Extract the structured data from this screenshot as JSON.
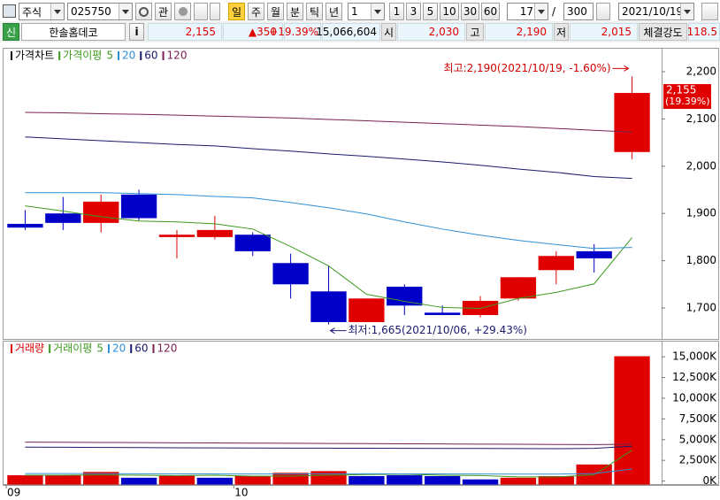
{
  "toolbar": {
    "market": "주식",
    "code": "025750",
    "interest": "관",
    "periods": [
      "일",
      "주",
      "월",
      "분",
      "틱",
      "년"
    ],
    "interval": "1",
    "quick": [
      "1",
      "3",
      "5",
      "10",
      "30",
      "60"
    ],
    "count": "17",
    "separator": "/",
    "count_total": "300",
    "date": "2021/10/19"
  },
  "quote_bar": {
    "flag": "신",
    "name": "한솔홈데코",
    "info": "i",
    "price": "2,155",
    "change": "▲350",
    "change_pct": "+19.39%",
    "volume": "15,066,604",
    "open_label": "시",
    "open": "2,030",
    "high_label": "고",
    "high": "2,190",
    "low_label": "저",
    "low": "2,015",
    "strength_label": "체결강도",
    "strength": "118.5"
  },
  "chart_data": [
    {
      "type": "candlestick",
      "series_name": "가격차트",
      "up_color": "#e00000",
      "down_color": "#0000c8",
      "open": [
        1878,
        1900,
        1880,
        1940,
        1850,
        1850,
        1855,
        1795,
        1735,
        1670,
        1745,
        1690,
        1685,
        1720,
        1780,
        1820,
        2030
      ],
      "high": [
        1907,
        1935,
        1940,
        1950,
        1865,
        1895,
        1860,
        1815,
        1790,
        1720,
        1750,
        1705,
        1725,
        1765,
        1820,
        1835,
        2190
      ],
      "low": [
        1865,
        1865,
        1860,
        1885,
        1805,
        1845,
        1810,
        1720,
        1665,
        1670,
        1685,
        1685,
        1680,
        1715,
        1750,
        1775,
        2015
      ],
      "close": [
        1870,
        1880,
        1925,
        1890,
        1855,
        1865,
        1820,
        1750,
        1670,
        1720,
        1705,
        1685,
        1715,
        1765,
        1810,
        1805,
        2155
      ],
      "ma_label": "가격이평",
      "ma_series": [
        {
          "name": "5",
          "color": "#3c9a1e",
          "values": [
            1916,
            1905,
            1893,
            1884,
            1882,
            1878,
            1867,
            1830,
            1789,
            1729,
            1714,
            1701,
            1699,
            1720,
            1733,
            1751,
            1849
          ]
        },
        {
          "name": "20",
          "color": "#2f8fd8",
          "values": [
            1944,
            1944,
            1944,
            1942,
            1940,
            1936,
            1933,
            1923,
            1912,
            1899,
            1882,
            1867,
            1854,
            1843,
            1834,
            1826,
            1828
          ]
        },
        {
          "name": "60",
          "color": "#1a1a6e",
          "values": [
            2062,
            2058,
            2054,
            2050,
            2046,
            2043,
            2037,
            2032,
            2026,
            2021,
            2015,
            2009,
            2002,
            1994,
            1987,
            1978,
            1974
          ]
        },
        {
          "name": "120",
          "color": "#7a2050",
          "values": [
            2114,
            2113,
            2111,
            2110,
            2108,
            2106,
            2104,
            2102,
            2099,
            2096,
            2093,
            2090,
            2087,
            2084,
            2080,
            2076,
            2072
          ]
        }
      ],
      "high_annotation": "최고:2,190(2021/10/19, -1.60%)",
      "low_annotation": "최저:1,665(2021/10/06, +29.43%)",
      "last_label": "2,155",
      "last_label_pct": "(19.39%)",
      "ylim": [
        1640,
        2245
      ],
      "yticks": [
        {
          "value": 2200,
          "label": "2,200"
        },
        {
          "value": 2100,
          "label": "2,100"
        },
        {
          "value": 2000,
          "label": "2,000"
        },
        {
          "value": 1900,
          "label": "1,900"
        },
        {
          "value": 1800,
          "label": "1,800"
        },
        {
          "value": 1700,
          "label": "1,700"
        }
      ]
    },
    {
      "type": "bar",
      "categories": [
        "09",
        null,
        null,
        null,
        null,
        null,
        "10",
        null,
        null,
        null,
        null,
        null,
        null,
        null,
        null,
        null,
        null
      ],
      "series": [
        {
          "name": "거래량",
          "color": "#e00000",
          "values": [
            700,
            700,
            1100,
            400,
            700,
            400,
            600,
            1000,
            1200,
            600,
            700,
            600,
            200,
            400,
            600,
            2000,
            15066.604
          ],
          "colors": [
            "#e00000",
            "#e00000",
            "#e00000",
            "#0000c8",
            "#e00000",
            "#0000c8",
            "#e00000",
            "#e00000",
            "#e00000",
            "#0000c8",
            "#0000c8",
            "#0000c8",
            "#0000c8",
            "#e00000",
            "#e00000",
            "#e00000",
            "#e00000"
          ]
        }
      ],
      "ma_label": "거래이평",
      "ma_series": [
        {
          "name": "5",
          "color": "#3c9a1e",
          "values": [
            700,
            700,
            750,
            700,
            650,
            700,
            600,
            600,
            700,
            780,
            820,
            700,
            660,
            500,
            500,
            760,
            3733
          ]
        },
        {
          "name": "20",
          "color": "#2f8fd8",
          "values": [
            900,
            900,
            900,
            880,
            870,
            860,
            850,
            860,
            880,
            880,
            870,
            860,
            850,
            840,
            840,
            900,
            1450
          ]
        },
        {
          "name": "60",
          "color": "#1a1a6e",
          "values": [
            4100,
            4080,
            4060,
            4040,
            4020,
            4000,
            3990,
            3980,
            3970,
            3960,
            3950,
            3940,
            3930,
            3920,
            3910,
            3950,
            4200
          ]
        },
        {
          "name": "120",
          "color": "#7a2050",
          "values": [
            4700,
            4680,
            4660,
            4640,
            4620,
            4600,
            4580,
            4560,
            4540,
            4520,
            4500,
            4480,
            4460,
            4440,
            4420,
            4400,
            4450
          ]
        }
      ],
      "ylim": [
        -470,
        16620
      ],
      "yticks": [
        {
          "value": 15000,
          "label": "15,000K"
        },
        {
          "value": 12500,
          "label": "12,500K"
        },
        {
          "value": 10000,
          "label": "10,000K"
        },
        {
          "value": 7500,
          "label": "7,500K"
        },
        {
          "value": 5000,
          "label": "5,000K"
        },
        {
          "value": 2500,
          "label": "2,500K"
        },
        {
          "value": 0,
          "label": "0K"
        }
      ]
    }
  ]
}
